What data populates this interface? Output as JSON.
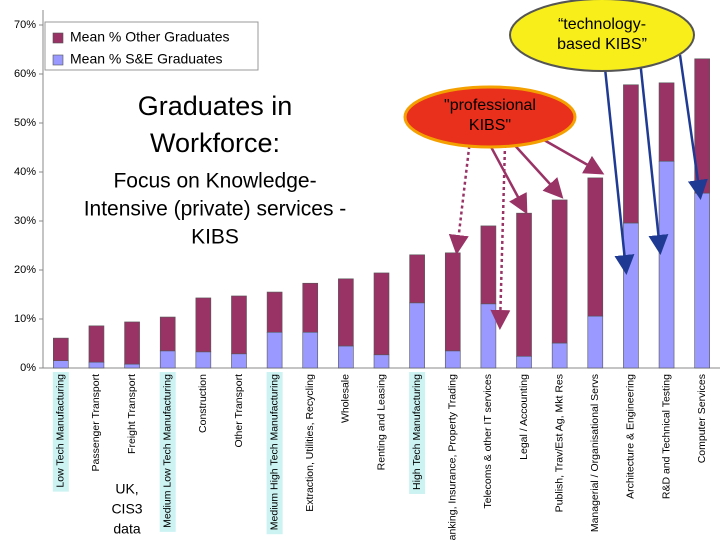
{
  "chart_data": {
    "type": "stacked_bar",
    "title": [
      "Graduates in",
      "Workforce:"
    ],
    "subtitle": [
      "Focus on Knowledge-",
      "Intensive (private) services -",
      "KIBS"
    ],
    "source_note": [
      "UK,",
      "CIS3",
      "data"
    ],
    "annotations": [
      {
        "lines": [
          "“technology-",
          "based KIBS”"
        ]
      },
      {
        "lines": [
          "\"professional",
          "KIBS\""
        ]
      }
    ],
    "categories": [
      "Low Tech Manufacturing",
      "Passenger Transport",
      "Freight Transport",
      "Medium Low Tech Manufacturing",
      "Construction",
      "Other Transport",
      "Medium High Tech Manufacturing",
      "Extraction, Utilities, Recycling",
      "Wholesale",
      "Renting and Leasing",
      "High Tech Manufacturing",
      "Banking, Insurance, Property Trading",
      "Telecoms & other IT services",
      "Legal / Accounting",
      "Publish, Trav/Est Ag, Mkt Res",
      "Managerial / Organisational Servs",
      "Architecture & Engineering",
      "R&D and Technical Testing",
      "Computer Services"
    ],
    "highlight_categories": [
      0,
      3,
      6,
      10
    ],
    "series": [
      {
        "name": "Mean % S&E Graduates",
        "color": "#9999ff",
        "values": [
          1.5,
          1.2,
          0.8,
          3.5,
          3.3,
          2.9,
          7.3,
          7.3,
          4.5,
          2.7,
          13.3,
          3.5,
          13.1,
          2.4,
          5.1,
          10.6,
          29.6,
          42.2,
          35.7
        ]
      },
      {
        "name": "Mean % Other Graduates",
        "color": "#993366",
        "values": [
          4.6,
          7.4,
          8.6,
          6.9,
          11.0,
          11.8,
          8.2,
          10.0,
          13.7,
          16.7,
          9.8,
          20.0,
          15.9,
          29.2,
          29.2,
          28.2,
          28.2,
          16.0,
          27.4
        ]
      }
    ],
    "ylim": [
      0,
      70
    ],
    "yticks": [
      {
        "value": 0,
        "label": "0%"
      },
      {
        "value": 10,
        "label": "10%"
      },
      {
        "value": 20,
        "label": "20%"
      },
      {
        "value": 30,
        "label": "30%"
      },
      {
        "value": 40,
        "label": "40%"
      },
      {
        "value": 50,
        "label": "50%"
      },
      {
        "value": 60,
        "label": "60%"
      },
      {
        "value": 70,
        "label": "70%"
      }
    ],
    "legend": "top-left"
  }
}
